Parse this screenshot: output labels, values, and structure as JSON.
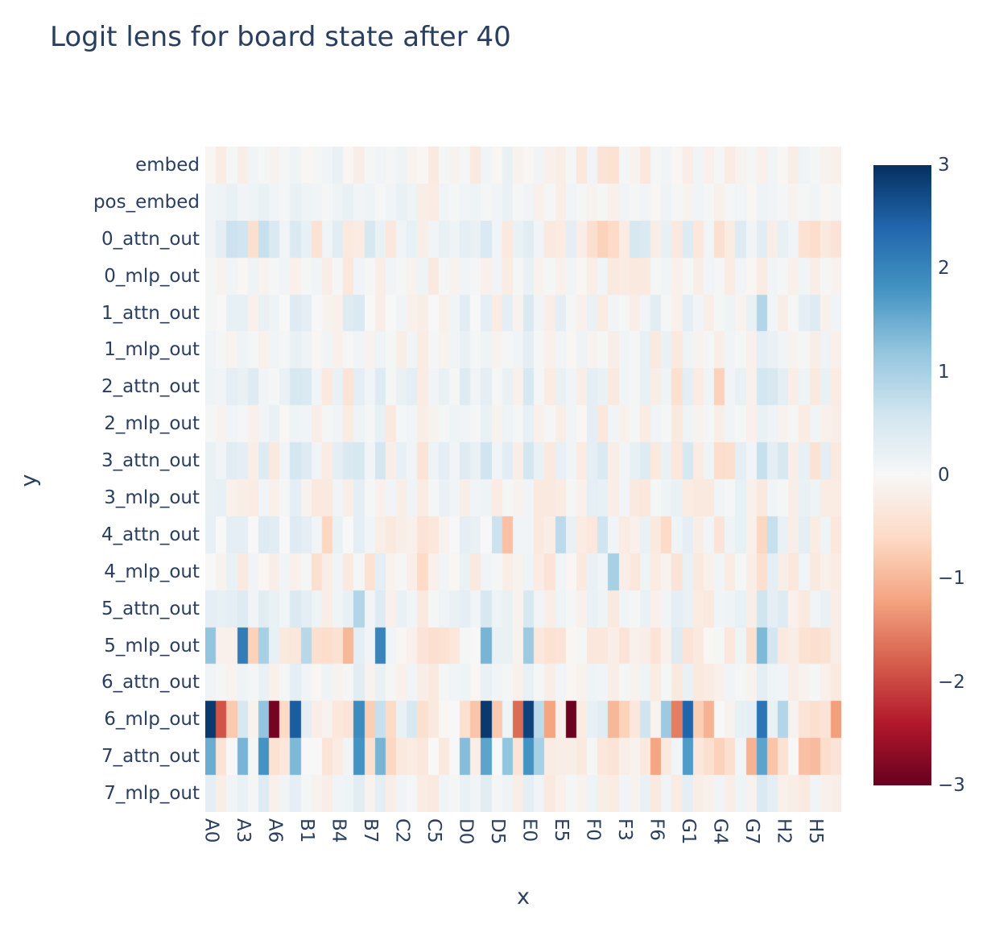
{
  "title": "Logit lens for board state after 40",
  "colors": {
    "title_text": "#2a3f5f",
    "tick_text": "#2a3f5f",
    "background": "#ffffff",
    "colorscale_positive_end": "#053061",
    "colorscale_mid": "#f7f7f7",
    "colorscale_negative_end": "#67001f"
  },
  "chart_data": {
    "type": "heatmap",
    "title": "Logit lens for board state after 40",
    "xlabel": "x",
    "ylabel": "y",
    "colorscale_name": "RdBu",
    "colorscale_stops": [
      "#67001f",
      "#b2182b",
      "#d6604d",
      "#f4a582",
      "#fddbc7",
      "#f7f7f7",
      "#d1e5f0",
      "#92c5de",
      "#4393c3",
      "#2166ac",
      "#053061"
    ],
    "zmin": -3,
    "zmax": 3,
    "colorbar_ticks": [
      3,
      2,
      1,
      0,
      -1,
      -2,
      -3
    ],
    "grid": false,
    "legend_position": "right-colorbar",
    "columns": 60,
    "x_tick_labels": [
      "A0",
      "A3",
      "A6",
      "B1",
      "B4",
      "B7",
      "C2",
      "C5",
      "D0",
      "D5",
      "E0",
      "E5",
      "F0",
      "F3",
      "F6",
      "G1",
      "G4",
      "G7",
      "H2",
      "H5"
    ],
    "x_tick_positions": [
      0,
      3,
      6,
      9,
      12,
      15,
      18,
      21,
      24,
      27,
      30,
      33,
      36,
      39,
      42,
      45,
      48,
      51,
      54,
      57
    ],
    "y_categories": [
      "embed",
      "pos_embed",
      "0_attn_out",
      "0_mlp_out",
      "1_attn_out",
      "1_mlp_out",
      "2_attn_out",
      "2_mlp_out",
      "3_attn_out",
      "3_mlp_out",
      "4_attn_out",
      "4_mlp_out",
      "5_attn_out",
      "5_mlp_out",
      "6_attn_out",
      "6_mlp_out",
      "7_attn_out",
      "7_mlp_out"
    ],
    "values": [
      [
        -0.05,
        -0.25,
        0.05,
        -0.2,
        0.1,
        0.05,
        -0.1,
        0.05,
        0.15,
        -0.05,
        0.05,
        0.1,
        0.2,
        -0.05,
        -0.2,
        0.05,
        0.1,
        0.05,
        0.15,
        -0.1,
        -0.05,
        -0.3,
        0.05,
        -0.1,
        0.05,
        -0.3,
        0.1,
        -0.05,
        0.2,
        -0.1,
        -0.05,
        0.1,
        -0.15,
        -0.2,
        0.05,
        -0.35,
        0.1,
        -0.4,
        -0.45,
        0.05,
        -0.1,
        -0.35,
        0.05,
        0.1,
        -0.05,
        -0.2,
        0.1,
        -0.15,
        0.05,
        -0.25,
        -0.1,
        0.05,
        -0.15,
        0.1,
        -0.05,
        -0.2,
        0.15,
        0.05,
        -0.1,
        -0.15
      ],
      [
        0.1,
        0.15,
        0.2,
        0.1,
        0.15,
        0.2,
        0.1,
        0.05,
        0.2,
        0.15,
        0.1,
        0.05,
        0.15,
        0.2,
        0.1,
        0.15,
        0.05,
        0.1,
        0.2,
        0.15,
        -0.2,
        -0.25,
        0.1,
        0.05,
        0.1,
        0.15,
        0.05,
        0.1,
        0.2,
        0.05,
        0.1,
        -0.15,
        0.05,
        -0.2,
        0.1,
        0.05,
        -0.1,
        0.05,
        -0.15,
        0.1,
        0.05,
        0.1,
        -0.05,
        0.15,
        0.05,
        -0.1,
        0.1,
        0.05,
        -0.15,
        0.05,
        0.1,
        -0.05,
        0.15,
        0.1,
        0.05,
        -0.1,
        0.05,
        0.1,
        -0.05,
        0.05
      ],
      [
        0.1,
        0.3,
        0.65,
        0.6,
        -0.5,
        0.7,
        0.45,
        0.1,
        0.45,
        0.25,
        -0.45,
        0.1,
        0.35,
        -0.3,
        -0.25,
        0.5,
        0.2,
        -0.35,
        0.1,
        0.25,
        -0.2,
        0.1,
        0.2,
        0.15,
        0.3,
        0.2,
        0.45,
        0.1,
        -0.3,
        0.2,
        0.35,
        0.1,
        -0.3,
        -0.25,
        0.3,
        -0.2,
        -0.5,
        -0.7,
        -0.6,
        -0.25,
        0.5,
        0.45,
        -0.2,
        0.25,
        -0.3,
        0.4,
        -0.35,
        0.1,
        -0.5,
        -0.25,
        0.4,
        0.1,
        0.35,
        -0.2,
        0.25,
        0.1,
        -0.45,
        -0.55,
        -0.3,
        -0.4
      ],
      [
        0.05,
        -0.1,
        0.1,
        -0.05,
        0.15,
        -0.1,
        0.05,
        0.1,
        -0.15,
        0.05,
        0.1,
        -0.2,
        0.05,
        -0.35,
        0.1,
        0.05,
        -0.2,
        0.1,
        0.05,
        -0.1,
        0.15,
        -0.3,
        0.05,
        -0.1,
        0.1,
        0.05,
        -0.15,
        0.1,
        -0.25,
        0.05,
        0.2,
        -0.1,
        0.05,
        -0.15,
        0.1,
        -0.05,
        -0.2,
        0.1,
        -0.3,
        -0.25,
        -0.3,
        -0.3,
        0.05,
        0.1,
        -0.15,
        0.05,
        -0.2,
        0.1,
        0.05,
        -0.25,
        0.1,
        -0.05,
        -0.25,
        0.1,
        0.05,
        -0.15,
        0.1,
        -0.2,
        0.05,
        -0.1
      ],
      [
        0.05,
        0.0,
        0.25,
        0.25,
        -0.15,
        0.2,
        0.15,
        0.0,
        0.4,
        0.3,
        0.0,
        -0.1,
        -0.15,
        0.4,
        0.45,
        0.0,
        -0.2,
        0.0,
        0.1,
        -0.15,
        -0.2,
        0.0,
        -0.15,
        0.1,
        0.35,
        0.0,
        0.3,
        -0.25,
        0.3,
        -0.1,
        0.45,
        0.1,
        -0.2,
        0.3,
        0.05,
        -0.15,
        0.2,
        -0.25,
        0.1,
        0.05,
        -0.2,
        0.1,
        0.35,
        0.05,
        -0.15,
        0.3,
        0.1,
        -0.2,
        0.05,
        0.15,
        -0.1,
        0.2,
        0.9,
        0.1,
        -0.2,
        0.05,
        0.3,
        0.4,
        -0.15,
        0.1
      ],
      [
        0.1,
        0.05,
        -0.1,
        0.15,
        0.05,
        -0.15,
        0.1,
        0.05,
        0.2,
        0.15,
        -0.05,
        0.1,
        -0.15,
        0.05,
        0.1,
        -0.1,
        0.15,
        0.05,
        -0.2,
        0.1,
        -0.25,
        0.05,
        -0.1,
        0.1,
        0.2,
        0.05,
        0.15,
        -0.1,
        0.05,
        0.1,
        0.3,
        0.05,
        -0.15,
        0.1,
        -0.05,
        0.15,
        -0.1,
        0.05,
        -0.2,
        0.1,
        0.05,
        0.25,
        -0.3,
        0.2,
        -0.3,
        0.15,
        -0.1,
        0.05,
        -0.2,
        0.1,
        0.05,
        -0.15,
        0.3,
        0.2,
        0.1,
        -0.1,
        0.05,
        -0.2,
        0.15,
        -0.15
      ],
      [
        0.15,
        0.1,
        0.3,
        0.2,
        0.4,
        0.1,
        0.05,
        0.2,
        0.5,
        0.45,
        0.1,
        -0.3,
        0.2,
        -0.4,
        0.3,
        0.1,
        0.4,
        0.05,
        0.2,
        0.3,
        -0.25,
        0.1,
        0.2,
        0.05,
        0.4,
        0.1,
        0.3,
        0.05,
        0.2,
        -0.15,
        0.5,
        0.05,
        -0.25,
        0.2,
        0.1,
        -0.2,
        0.3,
        0.2,
        -0.3,
        0.1,
        0.05,
        0.25,
        -0.2,
        0.15,
        -0.5,
        0.3,
        -0.25,
        0.1,
        -0.7,
        0.1,
        0.2,
        -0.15,
        0.55,
        0.5,
        0.3,
        -0.2,
        0.15,
        -0.3,
        0.2,
        -0.25
      ],
      [
        0.05,
        -0.1,
        0.1,
        0.05,
        -0.15,
        0.1,
        0.2,
        -0.05,
        0.15,
        0.1,
        -0.2,
        0.05,
        0.1,
        -0.25,
        0.15,
        0.05,
        0.25,
        -0.3,
        0.05,
        0.1,
        -0.2,
        -0.1,
        0.05,
        0.15,
        0.1,
        0.05,
        0.2,
        -0.1,
        0.15,
        0.05,
        0.25,
        -0.15,
        0.05,
        -0.2,
        0.1,
        -0.05,
        0.3,
        -0.35,
        0.1,
        -0.15,
        0.05,
        -0.25,
        0.1,
        0.05,
        -0.3,
        0.15,
        -0.1,
        0.05,
        -0.2,
        0.1,
        0.05,
        -0.15,
        0.2,
        0.15,
        -0.1,
        0.05,
        -0.25,
        0.1,
        -0.15,
        -0.2
      ],
      [
        0.2,
        0.1,
        0.35,
        0.3,
        -0.2,
        0.4,
        -0.3,
        0.1,
        0.55,
        0.4,
        0.1,
        -0.25,
        0.3,
        0.45,
        0.5,
        0.1,
        0.55,
        -0.2,
        0.25,
        0.1,
        -0.4,
        0.15,
        0.3,
        0.1,
        0.4,
        0.2,
        0.6,
        0.1,
        0.35,
        -0.2,
        0.55,
        0.2,
        -0.3,
        0.25,
        0.1,
        -0.25,
        0.3,
        0.45,
        -0.2,
        0.1,
        0.25,
        0.4,
        -0.3,
        0.2,
        -0.35,
        0.5,
        -0.25,
        0.15,
        -0.55,
        -0.5,
        0.3,
        0.1,
        0.7,
        0.3,
        0.5,
        -0.2,
        0.25,
        -0.45,
        0.3,
        -0.3
      ],
      [
        0.2,
        0.25,
        -0.15,
        -0.2,
        -0.25,
        0.1,
        -0.15,
        0.05,
        0.3,
        -0.1,
        -0.3,
        -0.3,
        0.1,
        -0.2,
        0.3,
        0.05,
        -0.15,
        0.1,
        -0.2,
        0.15,
        -0.25,
        0.05,
        0.2,
        0.1,
        -0.2,
        0.1,
        0.15,
        -0.25,
        0.05,
        -0.1,
        0.1,
        -0.3,
        -0.3,
        -0.25,
        0.05,
        -0.15,
        0.3,
        0.25,
        -0.2,
        0.1,
        -0.3,
        -0.35,
        0.05,
        0.15,
        0.2,
        -0.25,
        -0.3,
        -0.3,
        0.1,
        0.05,
        0.25,
        -0.15,
        -0.3,
        0.1,
        0.05,
        -0.2,
        0.2,
        0.15,
        -0.25,
        -0.25
      ],
      [
        0.25,
        0.0,
        0.3,
        0.3,
        0.0,
        0.4,
        0.35,
        0.0,
        0.4,
        0.3,
        0.1,
        -0.65,
        0.2,
        0.0,
        0.3,
        0.1,
        -0.2,
        -0.3,
        -0.2,
        -0.15,
        -0.4,
        -0.35,
        -0.1,
        0.0,
        0.3,
        0.2,
        0.0,
        0.65,
        -0.9,
        0.1,
        0.1,
        -0.3,
        -0.2,
        0.8,
        0.2,
        -0.25,
        -0.35,
        0.6,
        0.1,
        -0.25,
        -0.15,
        0.2,
        -0.3,
        -0.6,
        0.15,
        0.3,
        -0.2,
        0.1,
        -0.4,
        0.15,
        0.25,
        -0.15,
        -0.65,
        0.7,
        0.2,
        -0.2,
        0.3,
        -0.25,
        0.15,
        -0.35
      ],
      [
        0.0,
        -0.1,
        0.2,
        -0.3,
        0.1,
        -0.05,
        -0.2,
        0.1,
        -0.15,
        0.05,
        -0.5,
        -0.2,
        0.1,
        -0.3,
        0.05,
        -0.45,
        0.3,
        -0.1,
        0.05,
        -0.2,
        -0.6,
        -0.15,
        0.1,
        -0.05,
        0.2,
        -0.3,
        0.1,
        0.05,
        -0.2,
        -0.1,
        0.15,
        -0.25,
        -0.4,
        0.1,
        -0.05,
        -0.3,
        0.2,
        0.1,
        1.0,
        -0.2,
        -0.35,
        0.15,
        -0.25,
        -0.1,
        -0.4,
        0.2,
        -0.3,
        -0.15,
        0.1,
        -0.25,
        0.05,
        -0.2,
        -0.5,
        0.3,
        -0.2,
        -0.35,
        0.1,
        -0.3,
        -0.15,
        -0.25
      ],
      [
        0.3,
        0.25,
        0.3,
        0.4,
        0.1,
        0.35,
        0.2,
        0.1,
        0.45,
        0.3,
        0.15,
        -0.2,
        0.1,
        0.25,
        0.9,
        0.1,
        0.4,
        -0.15,
        0.2,
        0.1,
        -0.3,
        0.05,
        0.15,
        0.2,
        0.3,
        0.1,
        0.5,
        0.15,
        0.2,
        -0.1,
        0.5,
        0.1,
        -0.2,
        0.15,
        0.05,
        -0.15,
        0.2,
        0.15,
        -0.3,
        0.1,
        0.05,
        0.2,
        -0.15,
        0.1,
        0.3,
        0.2,
        -0.25,
        -0.3,
        0.1,
        0.15,
        0.25,
        -0.2,
        0.6,
        0.3,
        0.4,
        -0.15,
        -0.3,
        0.1,
        0.2,
        -0.2
      ],
      [
        1.2,
        -0.15,
        -0.15,
        2.1,
        -0.7,
        1.0,
        0.25,
        -0.3,
        -0.35,
        0.85,
        -0.5,
        -0.55,
        -0.45,
        -1.0,
        0.3,
        0.1,
        2.0,
        0.1,
        -0.05,
        -0.15,
        -0.4,
        -0.5,
        -0.45,
        -0.35,
        0.05,
        0.0,
        1.4,
        0.2,
        0.2,
        -0.1,
        1.1,
        -0.35,
        -0.45,
        -0.4,
        -0.05,
        0.05,
        -0.35,
        -0.35,
        -0.2,
        -0.4,
        -0.15,
        -0.2,
        -0.4,
        -0.15,
        0.4,
        -0.4,
        -0.3,
        -0.05,
        0.05,
        -0.35,
        0.15,
        -0.5,
        1.35,
        0.55,
        -0.3,
        -0.2,
        -0.45,
        -0.5,
        -0.45,
        -0.2
      ],
      [
        0.1,
        0.05,
        -0.1,
        0.15,
        0.05,
        0.2,
        -0.15,
        0.05,
        0.3,
        0.1,
        -0.05,
        0.15,
        -0.1,
        0.05,
        0.35,
        -0.1,
        0.2,
        0.05,
        -0.15,
        0.1,
        -0.2,
        -0.3,
        0.05,
        0.1,
        0.15,
        -0.05,
        0.2,
        0.1,
        0.05,
        -0.15,
        0.25,
        0.05,
        -0.2,
        0.1,
        -0.05,
        -0.1,
        0.15,
        0.1,
        -0.2,
        0.05,
        -0.1,
        0.15,
        -0.25,
        0.05,
        -0.3,
        0.2,
        -0.3,
        -0.25,
        -0.15,
        0.1,
        0.05,
        -0.1,
        0.3,
        0.15,
        0.1,
        -0.2,
        -0.1,
        0.05,
        -0.15,
        -0.3
      ],
      [
        2.9,
        -1.9,
        -0.8,
        0.5,
        -0.1,
        1.2,
        -2.9,
        -0.6,
        2.5,
        0.3,
        -0.2,
        -0.1,
        -0.35,
        -0.4,
        1.9,
        -0.75,
        0.7,
        -0.6,
        0.2,
        0.5,
        -0.5,
        -0.3,
        -0.05,
        0.0,
        -0.5,
        -0.85,
        2.9,
        -0.8,
        0.15,
        -1.7,
        2.8,
        0.8,
        -1.2,
        -0.15,
        -2.95,
        -0.25,
        0.25,
        0.35,
        -1.0,
        -0.7,
        -0.35,
        0.6,
        -0.1,
        1.1,
        -1.55,
        2.4,
        -0.75,
        -1.05,
        0.0,
        -0.1,
        0.25,
        0.3,
        2.2,
        0.2,
        0.9,
        -0.1,
        -0.4,
        -0.5,
        -0.4,
        -1.25
      ],
      [
        1.5,
        -0.4,
        0.0,
        1.4,
        0.05,
        1.8,
        -0.45,
        -0.35,
        1.35,
        0.0,
        0.0,
        -0.4,
        -0.25,
        0.1,
        1.8,
        -0.5,
        1.4,
        -0.65,
        -0.3,
        -0.25,
        -0.35,
        0.0,
        -0.3,
        0.0,
        1.3,
        -0.2,
        1.6,
        0.0,
        1.2,
        -0.4,
        1.8,
        1.0,
        -0.25,
        -0.2,
        -0.2,
        -0.3,
        0.05,
        -0.35,
        -0.4,
        -0.2,
        -0.1,
        -0.3,
        -1.2,
        -0.3,
        0.1,
        1.7,
        -0.35,
        -0.5,
        -0.7,
        -0.5,
        0.1,
        -1.05,
        1.6,
        -0.85,
        -0.45,
        0.0,
        -0.9,
        -0.95,
        -0.55,
        -0.4
      ],
      [
        0.3,
        -0.2,
        0.1,
        0.2,
        0.05,
        0.4,
        -0.15,
        0.1,
        0.3,
        0.05,
        -0.1,
        -0.2,
        0.1,
        0.15,
        0.35,
        -0.1,
        0.3,
        -0.2,
        0.1,
        0.05,
        -0.25,
        -0.3,
        0.1,
        0.05,
        0.2,
        0.1,
        0.35,
        0.05,
        0.15,
        -0.2,
        0.3,
        0.1,
        -0.3,
        -0.15,
        0.05,
        -0.1,
        0.15,
        -0.2,
        -0.25,
        0.1,
        -0.1,
        0.2,
        -0.3,
        0.1,
        -0.25,
        0.3,
        -0.2,
        -0.15,
        0.1,
        -0.2,
        0.15,
        -0.1,
        0.45,
        0.3,
        -0.15,
        -0.2,
        -0.3,
        0.1,
        -0.15,
        -0.2
      ]
    ]
  }
}
